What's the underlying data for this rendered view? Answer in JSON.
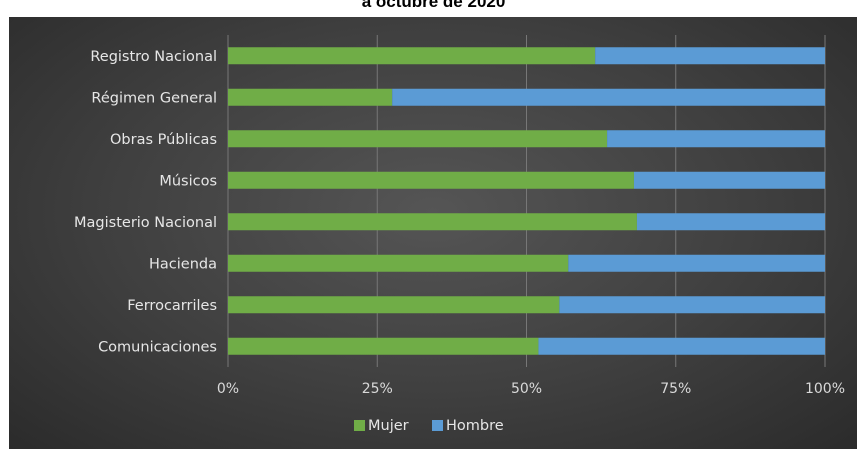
{
  "chart_data": {
    "type": "bar",
    "orientation": "horizontal",
    "stacked": "percent",
    "title": "a octubre de 2020",
    "categories": [
      "Registro Nacional",
      "Régimen General",
      "Obras Públicas",
      "Músicos",
      "Magisterio Nacional",
      "Hacienda",
      "Ferrocarriles",
      "Comunicaciones"
    ],
    "series": [
      {
        "name": "Mujer",
        "color": "#70ad47",
        "values": [
          61.5,
          27.5,
          63.5,
          68,
          68.5,
          57,
          55.5,
          52
        ]
      },
      {
        "name": "Hombre",
        "color": "#5b9bd5",
        "values": [
          38.5,
          72.5,
          36.5,
          32,
          31.5,
          43,
          44.5,
          48
        ]
      }
    ],
    "xlim": [
      0,
      100
    ],
    "xticks": [
      "0%",
      "25%",
      "50%",
      "75%",
      "100%"
    ],
    "grid": "vertical",
    "legend": "bottom"
  }
}
